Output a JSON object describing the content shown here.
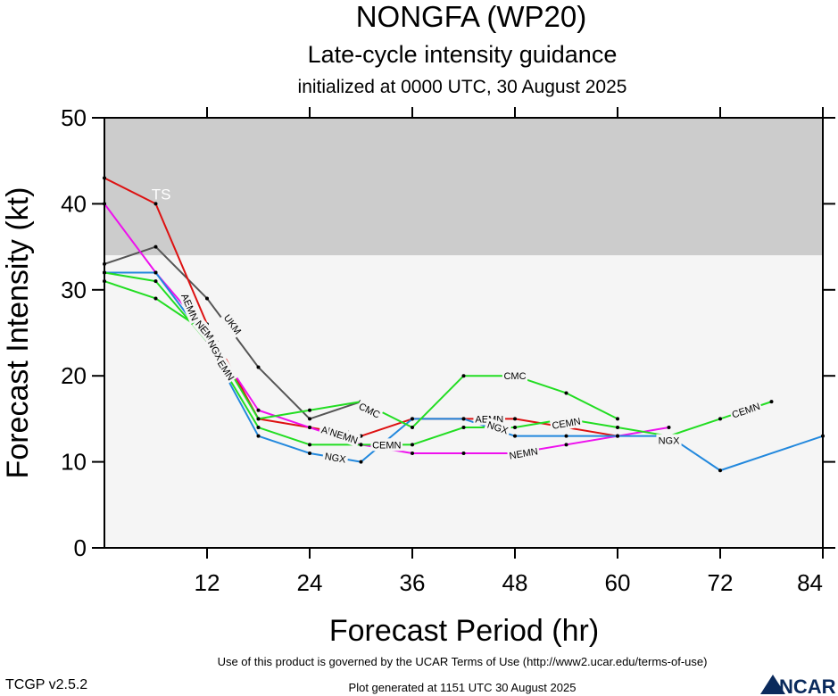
{
  "chart_data": {
    "type": "line",
    "title": "NONGFA (WP20)",
    "subtitle": "Late-cycle intensity guidance",
    "init_text": "initialized at 0000 UTC, 30 August 2025",
    "xlabel": "Forecast Period (hr)",
    "ylabel": "Forecast Intensity (kt)",
    "xlim": [
      0,
      84
    ],
    "ylim": [
      0,
      50
    ],
    "xticks": [
      12,
      24,
      36,
      48,
      60,
      72,
      84
    ],
    "yticks": [
      0,
      10,
      20,
      30,
      40,
      50
    ],
    "bands": [
      {
        "label": "TS",
        "from": 34,
        "to": 50,
        "color": "#cccccc"
      },
      {
        "label": "",
        "from": 0,
        "to": 34,
        "color": "#f5f5f5"
      }
    ],
    "series": [
      {
        "name": "UKM",
        "color": "#555555",
        "points": [
          [
            0,
            33
          ],
          [
            6,
            35
          ],
          [
            12,
            29
          ],
          [
            18,
            21
          ],
          [
            24,
            15
          ],
          [
            30,
            17
          ]
        ],
        "labels": [
          [
            15,
            26
          ]
        ]
      },
      {
        "name": "AEMN",
        "color": "#dd1111",
        "points": [
          [
            0,
            43
          ],
          [
            6,
            40
          ],
          [
            12,
            26
          ],
          [
            18,
            15
          ],
          [
            24,
            14
          ],
          [
            30,
            13
          ],
          [
            36,
            15
          ],
          [
            42,
            15
          ],
          [
            48,
            15
          ],
          [
            54,
            14
          ],
          [
            60,
            13
          ]
        ],
        "labels": [
          [
            10,
            28
          ],
          [
            27,
            13.5
          ],
          [
            45,
            15
          ]
        ]
      },
      {
        "name": "NEMN",
        "color": "#ee11ee",
        "points": [
          [
            0,
            40
          ],
          [
            6,
            32
          ],
          [
            12,
            25
          ],
          [
            18,
            16
          ],
          [
            24,
            14
          ],
          [
            30,
            12
          ],
          [
            36,
            11
          ],
          [
            42,
            11
          ],
          [
            48,
            11
          ],
          [
            54,
            12
          ],
          [
            60,
            13
          ],
          [
            66,
            14
          ]
        ],
        "labels": [
          [
            12,
            25
          ],
          [
            14,
            21
          ],
          [
            28,
            13
          ],
          [
            49,
            11
          ]
        ]
      },
      {
        "name": "NGX",
        "color": "#2288dd",
        "points": [
          [
            0,
            32
          ],
          [
            6,
            32
          ],
          [
            12,
            24
          ],
          [
            18,
            13
          ],
          [
            24,
            11
          ],
          [
            30,
            10
          ],
          [
            36,
            15
          ],
          [
            42,
            15
          ],
          [
            48,
            13
          ],
          [
            54,
            13
          ],
          [
            60,
            13
          ],
          [
            66,
            13
          ],
          [
            72,
            9
          ],
          [
            84,
            13
          ]
        ],
        "labels": [
          [
            13,
            23
          ],
          [
            27,
            10.5
          ],
          [
            46,
            14
          ],
          [
            66,
            12.5
          ]
        ]
      },
      {
        "name": "CMC",
        "color": "#22dd22",
        "points": [
          [
            0,
            31
          ],
          [
            6,
            29
          ],
          [
            12,
            25
          ],
          [
            18,
            15
          ],
          [
            24,
            16
          ],
          [
            30,
            17
          ],
          [
            36,
            14
          ],
          [
            42,
            20
          ],
          [
            48,
            20
          ],
          [
            54,
            18
          ],
          [
            60,
            15
          ]
        ],
        "labels": [
          [
            31,
            16
          ],
          [
            48,
            20
          ]
        ]
      },
      {
        "name": "CEMN",
        "color": "#22dd22",
        "points": [
          [
            0,
            32
          ],
          [
            6,
            31
          ],
          [
            12,
            24
          ],
          [
            18,
            14
          ],
          [
            24,
            12
          ],
          [
            30,
            12
          ],
          [
            36,
            12
          ],
          [
            42,
            14
          ],
          [
            48,
            14
          ],
          [
            54,
            15
          ],
          [
            60,
            14
          ],
          [
            66,
            13
          ],
          [
            72,
            15
          ],
          [
            78,
            17
          ]
        ],
        "labels": [
          [
            33,
            12
          ],
          [
            54,
            14.5
          ],
          [
            75,
            16
          ]
        ]
      }
    ]
  },
  "footer": {
    "terms": "Use of this product is governed by the UCAR Terms of Use (http://www2.ucar.edu/terms-of-use)",
    "generated": "Plot generated at 1151 UTC   30 August 2025",
    "version": "TCGP v2.5.2",
    "logo_text": "NCAR"
  }
}
